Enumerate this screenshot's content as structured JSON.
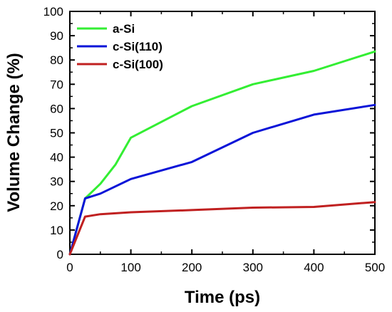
{
  "chart_data": {
    "type": "line",
    "xlabel": "Time (ps)",
    "ylabel": "Volume Change (%)",
    "xlim": [
      0,
      500
    ],
    "ylim": [
      0,
      100
    ],
    "x_ticks": [
      "0",
      "100",
      "200",
      "300",
      "400",
      "500"
    ],
    "y_ticks": [
      "0",
      "10",
      "20",
      "30",
      "40",
      "50",
      "60",
      "70",
      "80",
      "90",
      "100"
    ],
    "grid": false,
    "legend_position": "top-left",
    "series": [
      {
        "name": "a-Si",
        "color": "#33ee33",
        "x": [
          0,
          25,
          50,
          75,
          100,
          200,
          300,
          400,
          500
        ],
        "y": [
          0,
          23,
          29,
          37,
          48,
          61,
          70,
          75.5,
          83.5
        ]
      },
      {
        "name": "c-Si(110)",
        "color": "#0a14d8",
        "x": [
          0,
          25,
          50,
          100,
          200,
          300,
          400,
          500
        ],
        "y": [
          0,
          23,
          25,
          31,
          38,
          50,
          57.5,
          61.5
        ]
      },
      {
        "name": "c-Si(100)",
        "color": "#c02020",
        "x": [
          0,
          25,
          50,
          100,
          200,
          300,
          400,
          500
        ],
        "y": [
          0,
          15.5,
          16.5,
          17.3,
          18.2,
          19.2,
          19.5,
          21.5
        ]
      }
    ]
  }
}
